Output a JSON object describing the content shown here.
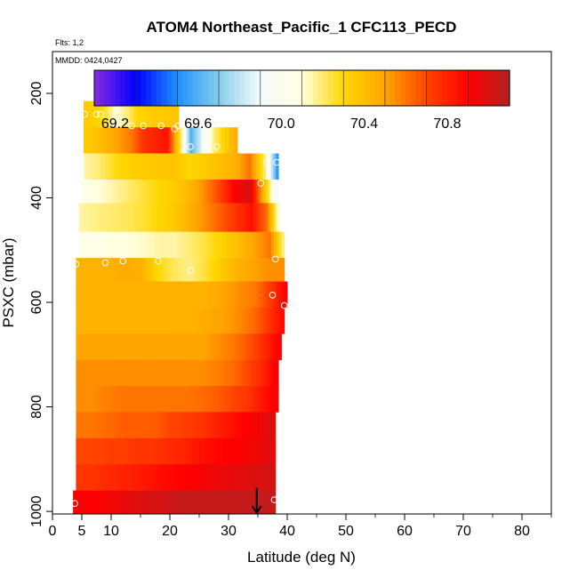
{
  "chart_data": {
    "type": "heatmap",
    "title": "ATOM4 Northeast_Pacific_1 CFC113_PECD",
    "flights_note": "Flts: 1,2",
    "date_note": "MMDD: 0424,0427",
    "xlabel": "Latitude (deg N)",
    "ylabel": "PSXC (mbar)",
    "xlim": [
      0,
      85
    ],
    "ylim": [
      1005,
      120
    ],
    "y_reversed": true,
    "x_ticks": [
      0,
      5,
      10,
      20,
      30,
      40,
      50,
      60,
      70,
      80
    ],
    "y_ticks": [
      200,
      400,
      600,
      800,
      1000
    ],
    "colorbar": {
      "range": [
        69.1,
        71.1
      ],
      "ticks": [
        69.2,
        69.6,
        70.0,
        70.4,
        70.8
      ],
      "tick_labels": [
        "69.2",
        "69.6",
        "70.0",
        "70.4",
        "70.8"
      ],
      "colors": [
        "#8a2be2",
        "#0000ff",
        "#1e90ff",
        "#87ceeb",
        "#f5fbff",
        "#ffffe0",
        "#ffd700",
        "#ffa500",
        "#ff4500",
        "#ff0000",
        "#b22222"
      ]
    },
    "layers": [
      {
        "p_top": 215,
        "p_bot": 265,
        "lat_start": 5.3,
        "lat_end": 21.5,
        "values": [
          70.35,
          70.34,
          70.25,
          70.1,
          70.18,
          70.3,
          70.33,
          70.35,
          70.36,
          70.37
        ]
      },
      {
        "p_top": 265,
        "p_bot": 315,
        "lat_start": 5.3,
        "lat_end": 31.5,
        "values": [
          70.35,
          70.38,
          70.45,
          70.52,
          70.6,
          70.75,
          70.8,
          70.85,
          70.3,
          69.6,
          69.9,
          70.2,
          70.35,
          70.5
        ]
      },
      {
        "p_top": 315,
        "p_bot": 365,
        "lat_start": 5.3,
        "lat_end": 38.5,
        "values": [
          70.15,
          70.2,
          70.28,
          70.33,
          70.35,
          70.36,
          70.38,
          70.3,
          70.35,
          70.4,
          70.45,
          70.6,
          70.2,
          69.4
        ]
      },
      {
        "p_top": 365,
        "p_bot": 410,
        "lat_start": 5.0,
        "lat_end": 38.5,
        "values": [
          70.05,
          70.1,
          70.15,
          70.2,
          70.25,
          70.3,
          70.35,
          70.42,
          70.55,
          70.7,
          70.9,
          71.0,
          70.4,
          69.8
        ]
      },
      {
        "p_top": 410,
        "p_bot": 465,
        "lat_start": 4.5,
        "lat_end": 39.0,
        "values": [
          70.15,
          70.18,
          70.2,
          70.22,
          70.25,
          70.3,
          70.35,
          70.45,
          70.55,
          70.65,
          70.75,
          70.85,
          70.6,
          69.9
        ]
      },
      {
        "p_top": 465,
        "p_bot": 515,
        "lat_start": 4.5,
        "lat_end": 39.5,
        "values": [
          70.05,
          70.05,
          70.1,
          70.1,
          70.12,
          70.15,
          70.15,
          70.2,
          70.25,
          70.32,
          70.4,
          70.5,
          70.6,
          70.1
        ]
      },
      {
        "p_top": 515,
        "p_bot": 560,
        "lat_start": 4.0,
        "lat_end": 39.5,
        "values": [
          70.45,
          70.45,
          70.45,
          70.48,
          70.45,
          70.3,
          70.22,
          70.18,
          70.25,
          70.35,
          70.45,
          70.5,
          70.55,
          70.55
        ]
      },
      {
        "p_top": 560,
        "p_bot": 610,
        "lat_start": 4.0,
        "lat_end": 40.0,
        "values": [
          70.45,
          70.45,
          70.45,
          70.45,
          70.45,
          70.45,
          70.45,
          70.45,
          70.45,
          70.5,
          70.55,
          70.6,
          70.75,
          70.95
        ]
      },
      {
        "p_top": 610,
        "p_bot": 660,
        "lat_start": 4.0,
        "lat_end": 39.5,
        "values": [
          70.45,
          70.45,
          70.45,
          70.45,
          70.45,
          70.45,
          70.45,
          70.45,
          70.47,
          70.5,
          70.55,
          70.62,
          70.75,
          70.9
        ]
      },
      {
        "p_top": 660,
        "p_bot": 710,
        "lat_start": 4.0,
        "lat_end": 39.0,
        "values": [
          70.5,
          70.5,
          70.5,
          70.5,
          70.5,
          70.5,
          70.5,
          70.5,
          70.5,
          70.55,
          70.6,
          70.68,
          70.8,
          70.95
        ]
      },
      {
        "p_top": 710,
        "p_bot": 760,
        "lat_start": 4.0,
        "lat_end": 38.5,
        "values": [
          70.55,
          70.55,
          70.55,
          70.55,
          70.55,
          70.55,
          70.55,
          70.55,
          70.55,
          70.58,
          70.62,
          70.7,
          70.8,
          70.95
        ]
      },
      {
        "p_top": 760,
        "p_bot": 810,
        "lat_start": 4.0,
        "lat_end": 38.5,
        "values": [
          70.55,
          70.55,
          70.58,
          70.6,
          70.6,
          70.6,
          70.6,
          70.6,
          70.62,
          70.65,
          70.7,
          70.75,
          70.85,
          70.95
        ]
      },
      {
        "p_top": 810,
        "p_bot": 860,
        "lat_start": 4.0,
        "lat_end": 38.0,
        "values": [
          70.6,
          70.6,
          70.62,
          70.65,
          70.65,
          70.65,
          70.7,
          70.72,
          70.75,
          70.8,
          70.85,
          70.9,
          70.95,
          71.0
        ]
      },
      {
        "p_top": 860,
        "p_bot": 910,
        "lat_start": 4.0,
        "lat_end": 38.0,
        "values": [
          70.7,
          70.7,
          70.72,
          70.72,
          70.75,
          70.75,
          70.78,
          70.8,
          70.85,
          70.88,
          70.9,
          70.92,
          70.95,
          70.98
        ]
      },
      {
        "p_top": 910,
        "p_bot": 960,
        "lat_start": 4.0,
        "lat_end": 38.0,
        "values": [
          70.75,
          70.75,
          70.78,
          70.8,
          70.82,
          70.85,
          70.88,
          70.9,
          70.92,
          70.95,
          70.96,
          70.98,
          71.0,
          71.02
        ]
      },
      {
        "p_top": 960,
        "p_bot": 1005,
        "lat_start": 3.5,
        "lat_end": 38.0,
        "values": [
          70.9,
          70.9,
          70.92,
          70.95,
          70.98,
          71.0,
          71.02,
          71.05,
          71.05,
          71.05,
          71.05,
          71.05,
          71.05,
          71.05
        ]
      }
    ],
    "sample_points": [
      {
        "lat": 5.5,
        "p": 240
      },
      {
        "lat": 7.5,
        "p": 240
      },
      {
        "lat": 8.2,
        "p": 240
      },
      {
        "lat": 10.5,
        "p": 255
      },
      {
        "lat": 13.5,
        "p": 262
      },
      {
        "lat": 15.5,
        "p": 262
      },
      {
        "lat": 18.5,
        "p": 262
      },
      {
        "lat": 20.8,
        "p": 268
      },
      {
        "lat": 21.4,
        "p": 262
      },
      {
        "lat": 23.5,
        "p": 302
      },
      {
        "lat": 26.2,
        "p": 302
      },
      {
        "lat": 28.0,
        "p": 302
      },
      {
        "lat": 36.5,
        "p": 332
      },
      {
        "lat": 38.2,
        "p": 332
      },
      {
        "lat": 35.5,
        "p": 372
      },
      {
        "lat": 38.0,
        "p": 517
      },
      {
        "lat": 4.0,
        "p": 527
      },
      {
        "lat": 9.0,
        "p": 524
      },
      {
        "lat": 12.0,
        "p": 521
      },
      {
        "lat": 18.0,
        "p": 521
      },
      {
        "lat": 23.5,
        "p": 539
      },
      {
        "lat": 37.5,
        "p": 586
      },
      {
        "lat": 39.5,
        "p": 606
      },
      {
        "lat": 3.8,
        "p": 985
      },
      {
        "lat": 37.8,
        "p": 978
      }
    ],
    "marker": {
      "lat": 34.8,
      "p_from": 955,
      "p_to": 1005,
      "shape": "down-arrow"
    }
  }
}
